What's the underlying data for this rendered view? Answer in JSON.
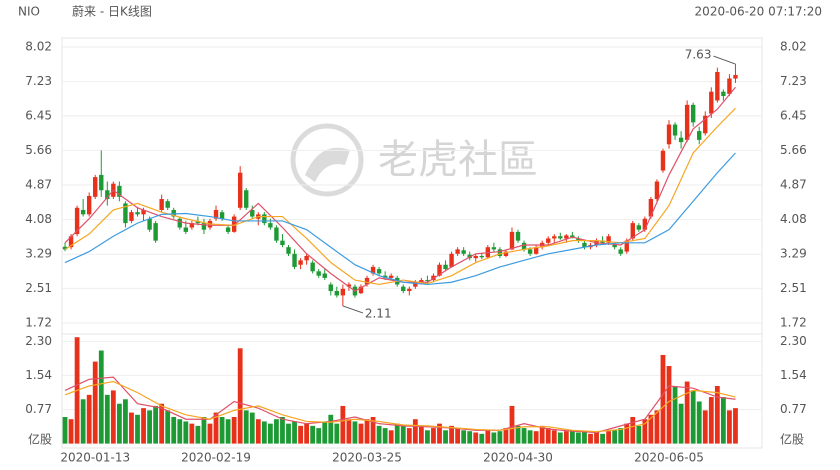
{
  "chart_data": {
    "type": "candlestick",
    "symbol": "NIO",
    "title": "蔚来 - 日K线图",
    "timestamp": "2020-06-20 07:17:20",
    "watermark": "老虎社區",
    "up_color": "#e8311a",
    "down_color": "#1e9a35",
    "categories": [
      null,
      null,
      null,
      null,
      null,
      "2020-01-13",
      null,
      null,
      null,
      null,
      null,
      null,
      null,
      null,
      null,
      null,
      null,
      null,
      null,
      null,
      null,
      null,
      null,
      null,
      null,
      "2020-02-19",
      null,
      null,
      null,
      null,
      null,
      null,
      null,
      null,
      null,
      null,
      null,
      null,
      null,
      null,
      null,
      null,
      null,
      null,
      null,
      null,
      null,
      null,
      null,
      null,
      "2020-03-25",
      null,
      null,
      null,
      null,
      null,
      null,
      null,
      null,
      null,
      null,
      null,
      null,
      null,
      null,
      null,
      null,
      null,
      null,
      null,
      null,
      null,
      null,
      null,
      null,
      "2020-04-30",
      null,
      null,
      null,
      null,
      null,
      null,
      null,
      null,
      null,
      null,
      null,
      null,
      null,
      null,
      null,
      null,
      null,
      null,
      null,
      null,
      null,
      null,
      null,
      null,
      "2020-06-05",
      null,
      null,
      null,
      null,
      null,
      null,
      null,
      null,
      null,
      null,
      null
    ],
    "candles": [
      [
        3.46,
        3.55,
        3.36,
        3.4
      ],
      [
        3.45,
        3.75,
        3.4,
        3.7
      ],
      [
        3.75,
        4.4,
        3.7,
        4.35
      ],
      [
        4.3,
        4.55,
        4.15,
        4.2
      ],
      [
        4.2,
        4.7,
        4.15,
        4.62
      ],
      [
        4.6,
        5.1,
        4.55,
        5.05
      ],
      [
        5.1,
        5.66,
        4.6,
        4.75
      ],
      [
        4.75,
        4.95,
        4.4,
        4.55
      ],
      [
        4.6,
        4.95,
        4.55,
        4.9
      ],
      [
        4.85,
        4.95,
        4.5,
        4.6
      ],
      [
        4.45,
        4.5,
        3.9,
        4.0
      ],
      [
        4.05,
        4.3,
        4.0,
        4.25
      ],
      [
        4.25,
        4.35,
        4.15,
        4.2
      ],
      [
        4.2,
        4.35,
        4.05,
        4.3
      ],
      [
        4.1,
        4.15,
        3.8,
        3.85
      ],
      [
        4.0,
        4.05,
        3.55,
        3.6
      ],
      [
        4.3,
        4.65,
        4.25,
        4.55
      ],
      [
        4.5,
        4.55,
        4.3,
        4.35
      ],
      [
        4.3,
        4.35,
        4.1,
        4.15
      ],
      [
        4.1,
        4.15,
        3.85,
        3.9
      ],
      [
        3.9,
        4.05,
        3.75,
        3.8
      ],
      [
        3.9,
        4.05,
        3.85,
        4.0
      ],
      [
        4.05,
        4.15,
        3.95,
        4.0
      ],
      [
        4.0,
        4.1,
        3.75,
        3.85
      ],
      [
        3.9,
        4.1,
        3.85,
        4.05
      ],
      [
        4.1,
        4.4,
        4.05,
        4.3
      ],
      [
        4.25,
        4.3,
        4.05,
        4.1
      ],
      [
        3.9,
        3.95,
        3.75,
        3.8
      ],
      [
        3.8,
        4.2,
        3.78,
        4.15
      ],
      [
        4.35,
        5.3,
        4.3,
        5.15
      ],
      [
        4.75,
        4.8,
        4.3,
        4.35
      ],
      [
        4.3,
        4.4,
        4.1,
        4.15
      ],
      [
        4.1,
        4.25,
        3.95,
        4.2
      ],
      [
        4.2,
        4.25,
        3.95,
        4.0
      ],
      [
        4.0,
        4.1,
        3.85,
        3.9
      ],
      [
        3.9,
        3.95,
        3.55,
        3.6
      ],
      [
        3.6,
        3.75,
        3.45,
        3.5
      ],
      [
        3.45,
        3.5,
        3.25,
        3.3
      ],
      [
        3.3,
        3.4,
        2.95,
        3.0
      ],
      [
        3.05,
        3.2,
        2.95,
        3.15
      ],
      [
        3.15,
        3.3,
        3.05,
        3.25
      ],
      [
        3.1,
        3.15,
        2.85,
        2.9
      ],
      [
        2.9,
        2.95,
        2.75,
        2.8
      ],
      [
        2.85,
        2.95,
        2.7,
        2.75
      ],
      [
        2.6,
        2.65,
        2.35,
        2.45
      ],
      [
        2.45,
        2.55,
        2.3,
        2.35
      ],
      [
        2.35,
        2.6,
        2.11,
        2.5
      ],
      [
        2.55,
        2.65,
        2.45,
        2.6
      ],
      [
        2.55,
        2.6,
        2.3,
        2.35
      ],
      [
        2.4,
        2.6,
        2.38,
        2.55
      ],
      [
        2.6,
        2.8,
        2.55,
        2.75
      ],
      [
        2.85,
        3.05,
        2.8,
        3.0
      ],
      [
        2.95,
        3.0,
        2.8,
        2.85
      ],
      [
        2.8,
        2.9,
        2.7,
        2.75
      ],
      [
        2.75,
        2.85,
        2.7,
        2.8
      ],
      [
        2.75,
        2.8,
        2.55,
        2.6
      ],
      [
        2.55,
        2.6,
        2.4,
        2.45
      ],
      [
        2.45,
        2.55,
        2.35,
        2.5
      ],
      [
        2.55,
        2.7,
        2.5,
        2.65
      ],
      [
        2.65,
        2.75,
        2.6,
        2.7
      ],
      [
        2.7,
        2.8,
        2.62,
        2.68
      ],
      [
        2.7,
        2.85,
        2.65,
        2.8
      ],
      [
        2.8,
        3.1,
        2.78,
        3.05
      ],
      [
        3.05,
        3.15,
        2.9,
        2.95
      ],
      [
        3.0,
        3.35,
        2.98,
        3.3
      ],
      [
        3.3,
        3.45,
        3.25,
        3.4
      ],
      [
        3.38,
        3.45,
        3.25,
        3.3
      ],
      [
        3.28,
        3.35,
        3.15,
        3.2
      ],
      [
        3.2,
        3.3,
        3.12,
        3.25
      ],
      [
        3.25,
        3.32,
        3.18,
        3.22
      ],
      [
        3.22,
        3.5,
        3.2,
        3.45
      ],
      [
        3.45,
        3.55,
        3.35,
        3.4
      ],
      [
        3.4,
        3.45,
        3.2,
        3.25
      ],
      [
        3.25,
        3.4,
        3.22,
        3.35
      ],
      [
        3.4,
        3.9,
        3.38,
        3.8
      ],
      [
        3.8,
        3.85,
        3.55,
        3.6
      ],
      [
        3.55,
        3.6,
        3.35,
        3.4
      ],
      [
        3.4,
        3.45,
        3.25,
        3.3
      ],
      [
        3.3,
        3.5,
        3.28,
        3.45
      ],
      [
        3.45,
        3.6,
        3.4,
        3.55
      ],
      [
        3.55,
        3.7,
        3.5,
        3.65
      ],
      [
        3.65,
        3.75,
        3.55,
        3.7
      ],
      [
        3.7,
        3.78,
        3.62,
        3.65
      ],
      [
        3.65,
        3.75,
        3.55,
        3.72
      ],
      [
        3.72,
        3.8,
        3.65,
        3.68
      ],
      [
        3.65,
        3.7,
        3.55,
        3.6
      ],
      [
        3.55,
        3.6,
        3.4,
        3.45
      ],
      [
        3.45,
        3.55,
        3.4,
        3.5
      ],
      [
        3.5,
        3.65,
        3.45,
        3.6
      ],
      [
        3.6,
        3.7,
        3.5,
        3.55
      ],
      [
        3.55,
        3.75,
        3.5,
        3.7
      ],
      [
        3.5,
        3.55,
        3.4,
        3.45
      ],
      [
        3.4,
        3.45,
        3.25,
        3.3
      ],
      [
        3.35,
        3.65,
        3.3,
        3.6
      ],
      [
        3.65,
        4.05,
        3.6,
        4.0
      ],
      [
        3.95,
        4.0,
        3.8,
        3.85
      ],
      [
        3.85,
        4.15,
        3.8,
        4.1
      ],
      [
        4.15,
        4.6,
        4.1,
        4.55
      ],
      [
        4.55,
        5.0,
        4.5,
        4.95
      ],
      [
        5.2,
        5.7,
        5.15,
        5.65
      ],
      [
        5.8,
        6.35,
        5.7,
        6.25
      ],
      [
        6.25,
        6.3,
        5.9,
        6.0
      ],
      [
        5.95,
        6.1,
        5.7,
        5.85
      ],
      [
        5.9,
        6.8,
        5.85,
        6.7
      ],
      [
        6.7,
        6.75,
        6.2,
        6.3
      ],
      [
        6.1,
        6.2,
        5.8,
        5.9
      ],
      [
        6.05,
        6.55,
        6.0,
        6.45
      ],
      [
        6.5,
        7.1,
        6.4,
        7.0
      ],
      [
        6.8,
        7.55,
        6.75,
        7.45
      ],
      [
        7.0,
        7.05,
        6.8,
        6.9
      ],
      [
        6.95,
        7.4,
        6.9,
        7.3
      ],
      [
        7.3,
        7.63,
        7.2,
        7.38
      ]
    ],
    "volume": [
      0.6,
      0.55,
      2.4,
      1.0,
      1.1,
      1.85,
      2.1,
      1.1,
      1.2,
      0.9,
      1.0,
      0.7,
      0.65,
      0.8,
      0.75,
      0.85,
      0.9,
      0.75,
      0.6,
      0.55,
      0.5,
      0.45,
      0.4,
      0.6,
      0.45,
      0.7,
      0.6,
      0.55,
      0.6,
      2.15,
      0.75,
      0.7,
      0.55,
      0.5,
      0.45,
      0.55,
      0.6,
      0.45,
      0.5,
      0.4,
      0.45,
      0.4,
      0.35,
      0.5,
      0.65,
      0.45,
      0.85,
      0.55,
      0.5,
      0.45,
      0.55,
      0.6,
      0.4,
      0.35,
      0.3,
      0.45,
      0.4,
      0.35,
      0.55,
      0.4,
      0.3,
      0.35,
      0.45,
      0.3,
      0.4,
      0.35,
      0.3,
      0.28,
      0.25,
      0.22,
      0.3,
      0.25,
      0.28,
      0.35,
      0.85,
      0.4,
      0.35,
      0.3,
      0.28,
      0.4,
      0.35,
      0.3,
      0.25,
      0.28,
      0.3,
      0.25,
      0.28,
      0.22,
      0.25,
      0.22,
      0.28,
      0.3,
      0.35,
      0.45,
      0.6,
      0.4,
      0.55,
      0.65,
      0.75,
      2.0,
      1.75,
      1.3,
      0.9,
      1.4,
      1.2,
      0.95,
      0.75,
      1.05,
      1.3,
      1.05,
      0.75,
      0.8
    ],
    "ylim": [
      1.72,
      8.02
    ],
    "yticks": [
      1.72,
      2.51,
      3.29,
      4.08,
      4.87,
      5.66,
      6.45,
      7.23,
      8.02
    ],
    "volume_ylim": [
      0,
      2.45
    ],
    "volume_yticks": [
      0.77,
      1.54,
      {
        "value": 2.3,
        "label": "2.30"
      }
    ],
    "volume_unit": "亿股",
    "ma_x": [
      0,
      4,
      8,
      12,
      16,
      20,
      24,
      28,
      32,
      36,
      40,
      44,
      48,
      52,
      56,
      60,
      64,
      68,
      72,
      76,
      80,
      84,
      88,
      92,
      96,
      100,
      104,
      108,
      111
    ],
    "price_ma": [
      {
        "color": "#e0506a",
        "values": [
          3.55,
          4.1,
          4.75,
          4.35,
          4.15,
          4.0,
          3.95,
          3.95,
          4.45,
          3.9,
          3.3,
          2.85,
          2.45,
          2.75,
          2.65,
          2.65,
          3.0,
          3.3,
          3.35,
          3.5,
          3.5,
          3.68,
          3.55,
          3.5,
          3.85,
          5.1,
          6.15,
          6.6,
          7.1
        ]
      },
      {
        "color": "#f5a623",
        "values": [
          3.4,
          3.75,
          4.3,
          4.45,
          4.25,
          4.1,
          3.98,
          3.95,
          4.15,
          4.15,
          3.65,
          3.1,
          2.7,
          2.6,
          2.7,
          2.62,
          2.8,
          3.1,
          3.3,
          3.4,
          3.48,
          3.6,
          3.6,
          3.55,
          3.65,
          4.4,
          5.6,
          6.2,
          6.62
        ]
      },
      {
        "color": "#3d9be0",
        "values": [
          3.1,
          3.35,
          3.7,
          4.0,
          4.2,
          4.22,
          4.15,
          4.05,
          4.05,
          4.05,
          3.85,
          3.45,
          3.05,
          2.8,
          2.65,
          2.6,
          2.65,
          2.8,
          3.0,
          3.15,
          3.3,
          3.4,
          3.5,
          3.55,
          3.55,
          3.85,
          4.5,
          5.15,
          5.6
        ]
      }
    ],
    "volume_ma": [
      {
        "color": "#e0506a",
        "values": [
          1.2,
          1.45,
          1.5,
          0.9,
          0.8,
          0.55,
          0.55,
          0.95,
          0.8,
          0.55,
          0.45,
          0.5,
          0.6,
          0.45,
          0.4,
          0.38,
          0.35,
          0.3,
          0.3,
          0.45,
          0.33,
          0.28,
          0.25,
          0.4,
          0.55,
          1.3,
          1.25,
          1.05,
          1.0
        ]
      },
      {
        "color": "#f5a623",
        "values": [
          1.1,
          1.3,
          1.4,
          1.15,
          0.85,
          0.65,
          0.55,
          0.75,
          0.85,
          0.65,
          0.5,
          0.48,
          0.55,
          0.5,
          0.42,
          0.4,
          0.36,
          0.32,
          0.3,
          0.38,
          0.38,
          0.3,
          0.27,
          0.32,
          0.45,
          0.95,
          1.2,
          1.15,
          1.05
        ]
      }
    ]
  }
}
